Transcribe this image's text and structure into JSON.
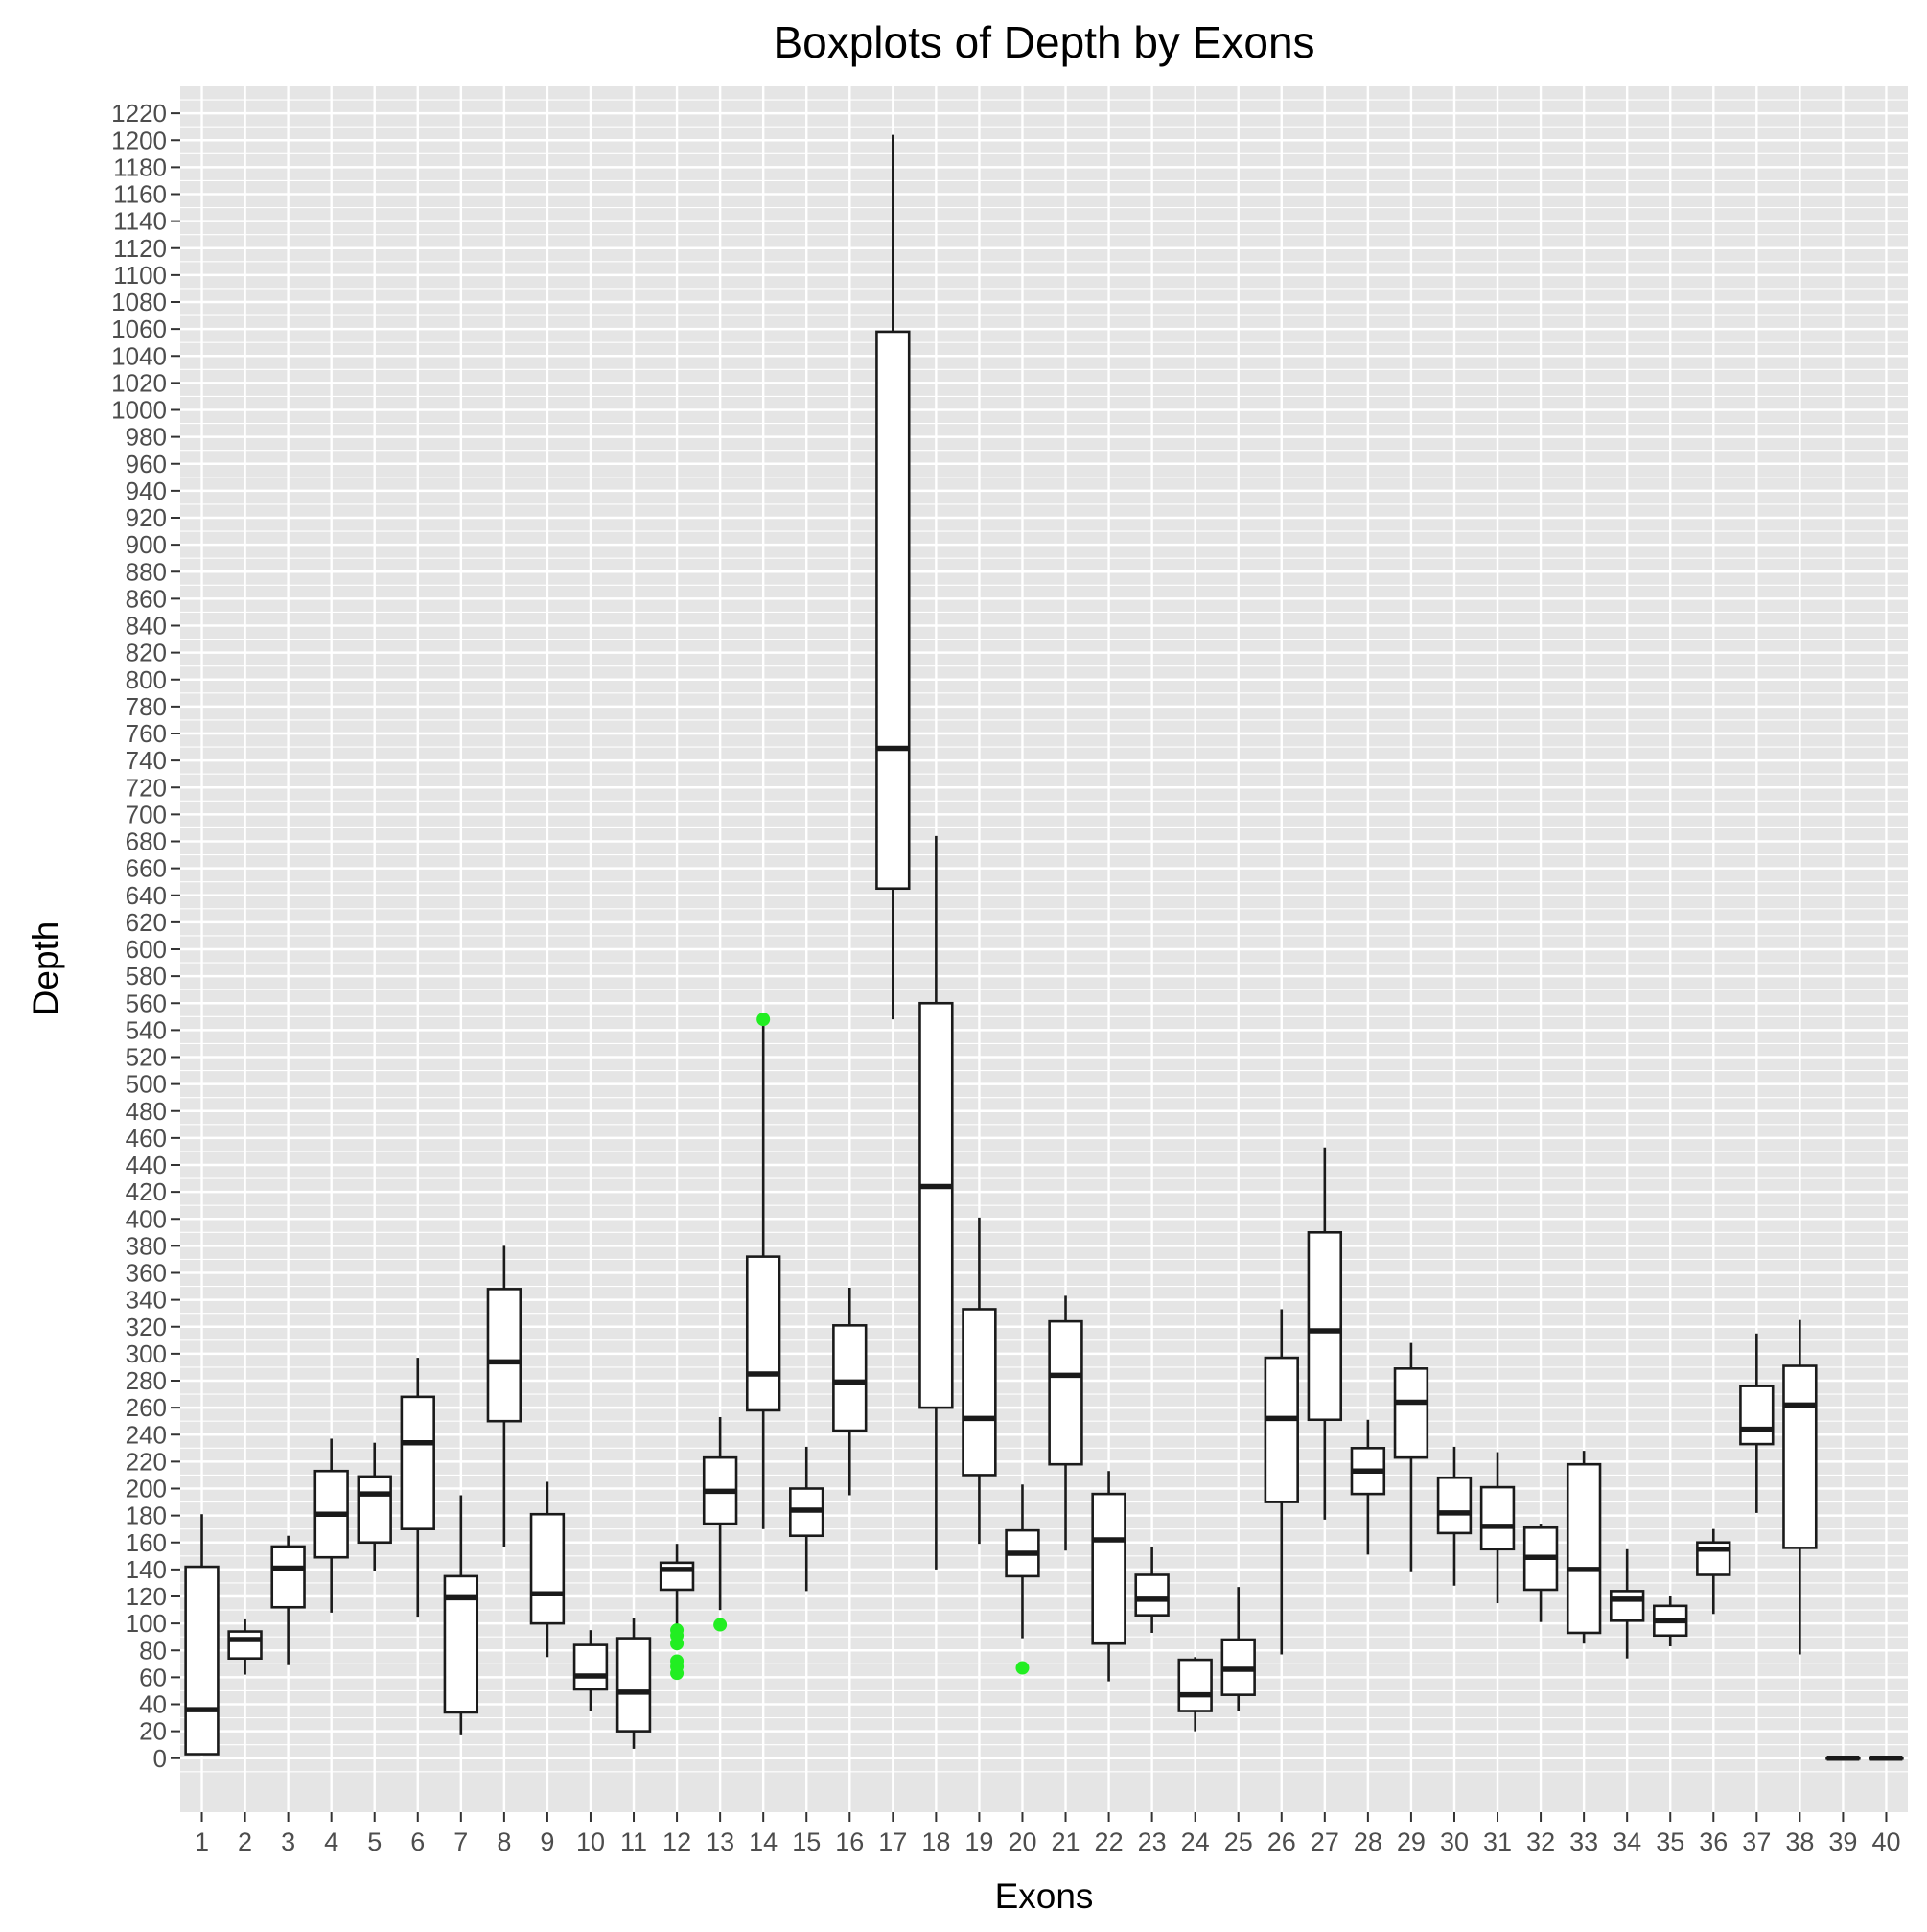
{
  "chart_data": {
    "type": "boxplot",
    "title": "Boxplots of Depth by Exons",
    "xlabel": "Exons",
    "ylabel": "Depth",
    "ylim": [
      -40,
      1240
    ],
    "ytick_step": 20,
    "ytick_max": 1220,
    "grid": true,
    "legend": "none",
    "colors": {
      "panel_background": "#e5e5e5",
      "grid": "#ffffff",
      "box_fill": "#ffffff",
      "box_line": "#1a1a1a",
      "outlier": "#22ee22",
      "text": "#4d4d4d",
      "title": "#000000"
    },
    "categories": [
      "1",
      "2",
      "3",
      "4",
      "5",
      "6",
      "7",
      "8",
      "9",
      "10",
      "11",
      "12",
      "13",
      "14",
      "15",
      "16",
      "17",
      "18",
      "19",
      "20",
      "21",
      "22",
      "23",
      "24",
      "25",
      "26",
      "27",
      "28",
      "29",
      "30",
      "31",
      "32",
      "33",
      "34",
      "35",
      "36",
      "37",
      "38",
      "39",
      "40"
    ],
    "boxes": [
      {
        "exon": "1",
        "low": 3,
        "q1": 3,
        "median": 36,
        "q3": 142,
        "high": 181
      },
      {
        "exon": "2",
        "low": 62,
        "q1": 74,
        "median": 88,
        "q3": 94,
        "high": 103
      },
      {
        "exon": "3",
        "low": 69,
        "q1": 112,
        "median": 141,
        "q3": 157,
        "high": 165
      },
      {
        "exon": "4",
        "low": 108,
        "q1": 149,
        "median": 181,
        "q3": 213,
        "high": 237
      },
      {
        "exon": "5",
        "low": 139,
        "q1": 160,
        "median": 196,
        "q3": 209,
        "high": 234
      },
      {
        "exon": "6",
        "low": 105,
        "q1": 170,
        "median": 234,
        "q3": 268,
        "high": 297
      },
      {
        "exon": "7",
        "low": 17,
        "q1": 34,
        "median": 119,
        "q3": 135,
        "high": 195
      },
      {
        "exon": "8",
        "low": 157,
        "q1": 250,
        "median": 294,
        "q3": 348,
        "high": 380
      },
      {
        "exon": "9",
        "low": 75,
        "q1": 100,
        "median": 122,
        "q3": 181,
        "high": 205
      },
      {
        "exon": "10",
        "low": 35,
        "q1": 51,
        "median": 61,
        "q3": 84,
        "high": 95
      },
      {
        "exon": "11",
        "low": 7,
        "q1": 20,
        "median": 49,
        "q3": 89,
        "high": 104
      },
      {
        "exon": "12",
        "low": 97,
        "q1": 125,
        "median": 140,
        "q3": 145,
        "high": 159,
        "outliers": [
          63,
          68,
          72,
          85,
          91,
          95
        ]
      },
      {
        "exon": "13",
        "low": 110,
        "q1": 174,
        "median": 198,
        "q3": 223,
        "high": 253,
        "outliers": [
          99
        ]
      },
      {
        "exon": "14",
        "low": 170,
        "q1": 258,
        "median": 285,
        "q3": 372,
        "high": 548,
        "outliers": [
          548
        ]
      },
      {
        "exon": "15",
        "low": 124,
        "q1": 165,
        "median": 184,
        "q3": 200,
        "high": 231
      },
      {
        "exon": "16",
        "low": 195,
        "q1": 243,
        "median": 279,
        "q3": 321,
        "high": 349
      },
      {
        "exon": "17",
        "low": 548,
        "q1": 645,
        "median": 749,
        "q3": 1058,
        "high": 1204
      },
      {
        "exon": "18",
        "low": 140,
        "q1": 260,
        "median": 424,
        "q3": 560,
        "high": 684
      },
      {
        "exon": "19",
        "low": 159,
        "q1": 210,
        "median": 252,
        "q3": 333,
        "high": 401
      },
      {
        "exon": "20",
        "low": 89,
        "q1": 135,
        "median": 152,
        "q3": 169,
        "high": 203,
        "outliers": [
          67
        ]
      },
      {
        "exon": "21",
        "low": 154,
        "q1": 218,
        "median": 284,
        "q3": 324,
        "high": 343
      },
      {
        "exon": "22",
        "low": 57,
        "q1": 85,
        "median": 162,
        "q3": 196,
        "high": 213
      },
      {
        "exon": "23",
        "low": 93,
        "q1": 106,
        "median": 118,
        "q3": 136,
        "high": 157
      },
      {
        "exon": "24",
        "low": 20,
        "q1": 35,
        "median": 47,
        "q3": 73,
        "high": 75
      },
      {
        "exon": "25",
        "low": 35,
        "q1": 47,
        "median": 66,
        "q3": 88,
        "high": 127
      },
      {
        "exon": "26",
        "low": 77,
        "q1": 190,
        "median": 252,
        "q3": 297,
        "high": 333
      },
      {
        "exon": "27",
        "low": 177,
        "q1": 251,
        "median": 317,
        "q3": 390,
        "high": 453
      },
      {
        "exon": "28",
        "low": 151,
        "q1": 196,
        "median": 213,
        "q3": 230,
        "high": 251
      },
      {
        "exon": "29",
        "low": 138,
        "q1": 223,
        "median": 264,
        "q3": 289,
        "high": 308
      },
      {
        "exon": "30",
        "low": 128,
        "q1": 167,
        "median": 182,
        "q3": 208,
        "high": 231
      },
      {
        "exon": "31",
        "low": 115,
        "q1": 155,
        "median": 172,
        "q3": 201,
        "high": 227
      },
      {
        "exon": "32",
        "low": 101,
        "q1": 125,
        "median": 149,
        "q3": 171,
        "high": 174
      },
      {
        "exon": "33",
        "low": 85,
        "q1": 93,
        "median": 140,
        "q3": 218,
        "high": 228
      },
      {
        "exon": "34",
        "low": 74,
        "q1": 102,
        "median": 118,
        "q3": 124,
        "high": 155
      },
      {
        "exon": "35",
        "low": 83,
        "q1": 91,
        "median": 102,
        "q3": 113,
        "high": 120
      },
      {
        "exon": "36",
        "low": 107,
        "q1": 136,
        "median": 155,
        "q3": 160,
        "high": 170
      },
      {
        "exon": "37",
        "low": 182,
        "q1": 233,
        "median": 244,
        "q3": 276,
        "high": 315
      },
      {
        "exon": "38",
        "low": 77,
        "q1": 156,
        "median": 262,
        "q3": 291,
        "high": 325
      },
      {
        "exon": "39",
        "low": 0,
        "q1": 0,
        "median": 0,
        "q3": 0,
        "high": 0
      },
      {
        "exon": "40",
        "low": 0,
        "q1": 0,
        "median": 0,
        "q3": 0,
        "high": 0
      }
    ]
  }
}
